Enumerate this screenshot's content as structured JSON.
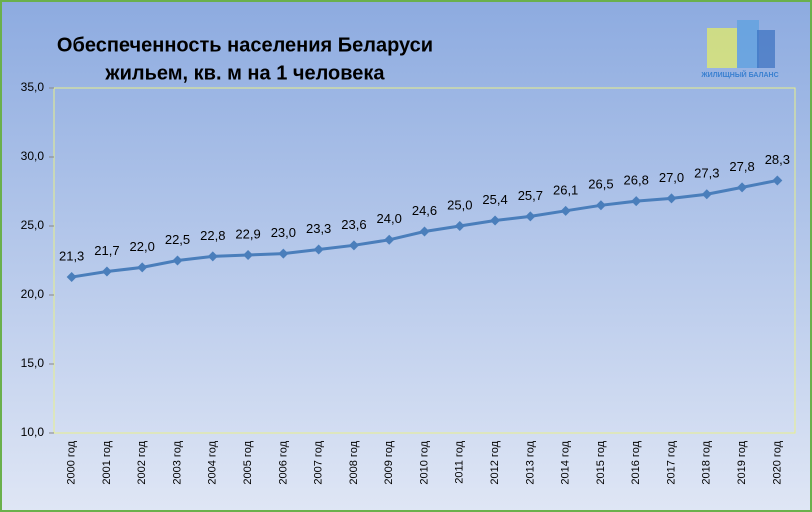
{
  "chart_data": {
    "type": "line",
    "title": [
      "Обеспеченность населения Беларуси",
      "жильем, кв. м на 1 человека"
    ],
    "logo": "ЖИЛИЩНЫЙ БАЛАНС",
    "categories": [
      "2000 год",
      "2001 год",
      "2002 год",
      "2003 год",
      "2004 год",
      "2005 год",
      "2006 год",
      "2007 год",
      "2008 год",
      "2009 год",
      "2010 год",
      "2011 год",
      "2012 год",
      "2013 год",
      "2014 год",
      "2015 год",
      "2016 год",
      "2017 год",
      "2018 год",
      "2019 год",
      "2020 год"
    ],
    "values": [
      21.3,
      21.7,
      22.0,
      22.5,
      22.8,
      22.9,
      23.0,
      23.3,
      23.6,
      24.0,
      24.6,
      25.0,
      25.4,
      25.7,
      26.1,
      26.5,
      26.8,
      27.0,
      27.3,
      27.8,
      28.3
    ],
    "value_labels": [
      "21,3",
      "21,7",
      "22,0",
      "22,5",
      "22,8",
      "22,9",
      "23,0",
      "23,3",
      "23,6",
      "24,0",
      "24,6",
      "25,0",
      "25,4",
      "25,7",
      "26,1",
      "26,5",
      "26,8",
      "27,0",
      "27,3",
      "27,8",
      "28,3"
    ],
    "color": "#4a7ebb",
    "ylim": [
      10,
      35
    ],
    "yticks": [
      {
        "value": 10,
        "label": "10,0"
      },
      {
        "value": 15,
        "label": "15,0"
      },
      {
        "value": 20,
        "label": "20,0"
      },
      {
        "value": 25,
        "label": "25,0"
      },
      {
        "value": 30,
        "label": "30,0"
      },
      {
        "value": 35,
        "label": "35,0"
      }
    ],
    "grid": false
  }
}
